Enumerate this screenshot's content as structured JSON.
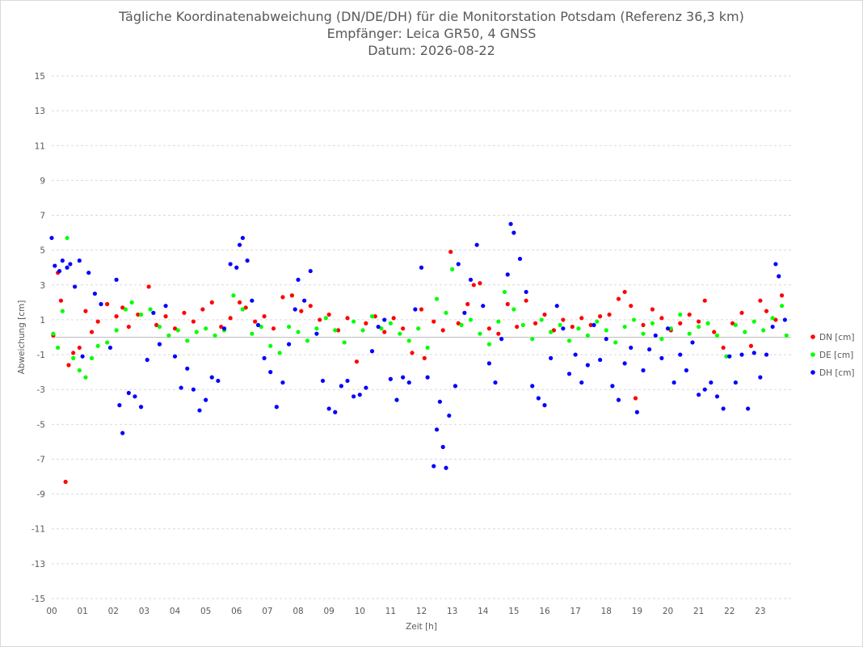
{
  "chart_data": {
    "type": "scatter",
    "title": "Tägliche Koordinatenabweichung (DN/DE/DH) für die Monitorstation Potsdam (Referenz 36,3 km)",
    "subtitle1": "Empfänger: Leica GR50, 4 GNSS",
    "subtitle2": "Datum: 2026-08-22",
    "xlabel": "Zeit [h]",
    "ylabel": "Abweichung [cm]",
    "xlim": [
      0,
      24
    ],
    "ylim": [
      -15,
      15
    ],
    "y_ticks": [
      "15",
      "13",
      "11",
      "9",
      "7",
      "5",
      "3",
      "1",
      "-1",
      "-3",
      "-5",
      "-7",
      "-9",
      "-11",
      "-13",
      "-15"
    ],
    "x_ticks": [
      "00",
      "01",
      "02",
      "03",
      "04",
      "05",
      "06",
      "07",
      "08",
      "09",
      "10",
      "11",
      "12",
      "13",
      "14",
      "15",
      "16",
      "17",
      "18",
      "19",
      "20",
      "21",
      "22",
      "23"
    ],
    "grid": "horizontal dashed",
    "legend_position": "right",
    "colors": {
      "DN": "#ff0000",
      "DE": "#00ff00",
      "DH": "#0000ff"
    },
    "series": [
      {
        "name": "DN [cm]",
        "color": "#ff0000",
        "points": [
          [
            0.05,
            0.1
          ],
          [
            0.2,
            3.7
          ],
          [
            0.3,
            2.1
          ],
          [
            0.45,
            -8.3
          ],
          [
            0.55,
            -1.6
          ],
          [
            0.7,
            -0.9
          ],
          [
            0.9,
            -0.6
          ],
          [
            1.1,
            1.5
          ],
          [
            1.3,
            0.3
          ],
          [
            1.5,
            0.9
          ],
          [
            1.8,
            1.9
          ],
          [
            2.1,
            1.2
          ],
          [
            2.3,
            1.7
          ],
          [
            2.5,
            0.6
          ],
          [
            2.8,
            1.3
          ],
          [
            3.15,
            2.9
          ],
          [
            3.4,
            0.7
          ],
          [
            3.7,
            1.2
          ],
          [
            4.0,
            0.5
          ],
          [
            4.3,
            1.4
          ],
          [
            4.6,
            0.9
          ],
          [
            4.9,
            1.6
          ],
          [
            5.2,
            2.0
          ],
          [
            5.5,
            0.6
          ],
          [
            5.8,
            1.1
          ],
          [
            6.1,
            2.0
          ],
          [
            6.3,
            1.7
          ],
          [
            6.6,
            0.9
          ],
          [
            6.9,
            1.2
          ],
          [
            7.2,
            0.5
          ],
          [
            7.5,
            2.3
          ],
          [
            7.8,
            2.4
          ],
          [
            8.1,
            1.5
          ],
          [
            8.4,
            1.8
          ],
          [
            8.7,
            1.0
          ],
          [
            9.0,
            1.3
          ],
          [
            9.3,
            0.4
          ],
          [
            9.6,
            1.1
          ],
          [
            9.9,
            -1.4
          ],
          [
            10.2,
            0.8
          ],
          [
            10.5,
            1.2
          ],
          [
            10.8,
            0.3
          ],
          [
            11.1,
            1.1
          ],
          [
            11.4,
            0.5
          ],
          [
            11.7,
            -0.9
          ],
          [
            12.0,
            1.6
          ],
          [
            12.1,
            -1.2
          ],
          [
            12.4,
            0.9
          ],
          [
            12.7,
            0.4
          ],
          [
            12.95,
            4.9
          ],
          [
            13.2,
            0.8
          ],
          [
            13.5,
            1.9
          ],
          [
            13.7,
            3.0
          ],
          [
            13.9,
            3.1
          ],
          [
            14.2,
            0.5
          ],
          [
            14.5,
            0.2
          ],
          [
            14.8,
            1.9
          ],
          [
            15.1,
            0.6
          ],
          [
            15.4,
            2.1
          ],
          [
            15.7,
            0.8
          ],
          [
            16.0,
            1.3
          ],
          [
            16.3,
            0.4
          ],
          [
            16.6,
            1.0
          ],
          [
            16.9,
            0.6
          ],
          [
            17.2,
            1.1
          ],
          [
            17.5,
            0.7
          ],
          [
            17.8,
            1.2
          ],
          [
            18.1,
            1.3
          ],
          [
            18.4,
            2.2
          ],
          [
            18.6,
            2.6
          ],
          [
            18.8,
            1.8
          ],
          [
            18.95,
            -3.5
          ],
          [
            19.2,
            0.7
          ],
          [
            19.5,
            1.6
          ],
          [
            19.8,
            1.1
          ],
          [
            20.1,
            0.4
          ],
          [
            20.4,
            0.8
          ],
          [
            20.7,
            1.3
          ],
          [
            21.0,
            0.9
          ],
          [
            21.2,
            2.1
          ],
          [
            21.5,
            0.3
          ],
          [
            21.8,
            -0.6
          ],
          [
            22.1,
            0.8
          ],
          [
            22.4,
            1.4
          ],
          [
            22.7,
            -0.5
          ],
          [
            23.0,
            2.1
          ],
          [
            23.2,
            1.5
          ],
          [
            23.5,
            1.0
          ],
          [
            23.7,
            2.4
          ]
        ]
      },
      {
        "name": "DE [cm]",
        "color": "#00ff00",
        "points": [
          [
            0.05,
            0.2
          ],
          [
            0.2,
            -0.6
          ],
          [
            0.35,
            1.5
          ],
          [
            0.5,
            5.7
          ],
          [
            0.7,
            -1.2
          ],
          [
            0.9,
            -1.9
          ],
          [
            1.1,
            -2.3
          ],
          [
            1.3,
            -1.2
          ],
          [
            1.5,
            -0.5
          ],
          [
            1.8,
            -0.3
          ],
          [
            2.1,
            0.4
          ],
          [
            2.4,
            1.6
          ],
          [
            2.6,
            2.0
          ],
          [
            2.9,
            1.3
          ],
          [
            3.2,
            1.6
          ],
          [
            3.5,
            0.6
          ],
          [
            3.8,
            0.1
          ],
          [
            4.1,
            0.4
          ],
          [
            4.4,
            -0.2
          ],
          [
            4.7,
            0.3
          ],
          [
            5.0,
            0.5
          ],
          [
            5.3,
            0.1
          ],
          [
            5.6,
            0.4
          ],
          [
            5.9,
            2.4
          ],
          [
            6.2,
            1.6
          ],
          [
            6.5,
            0.2
          ],
          [
            6.8,
            0.6
          ],
          [
            7.1,
            -0.5
          ],
          [
            7.4,
            -0.9
          ],
          [
            7.7,
            0.6
          ],
          [
            8.0,
            0.3
          ],
          [
            8.3,
            -0.2
          ],
          [
            8.6,
            0.5
          ],
          [
            8.9,
            1.1
          ],
          [
            9.2,
            0.4
          ],
          [
            9.5,
            -0.3
          ],
          [
            9.8,
            0.9
          ],
          [
            10.1,
            0.4
          ],
          [
            10.4,
            1.2
          ],
          [
            10.7,
            0.5
          ],
          [
            11.0,
            0.8
          ],
          [
            11.3,
            0.2
          ],
          [
            11.6,
            -0.2
          ],
          [
            11.9,
            0.5
          ],
          [
            12.2,
            -0.6
          ],
          [
            12.5,
            2.2
          ],
          [
            12.8,
            1.4
          ],
          [
            13.0,
            3.9
          ],
          [
            13.3,
            0.7
          ],
          [
            13.6,
            1.0
          ],
          [
            13.9,
            0.2
          ],
          [
            14.2,
            -0.4
          ],
          [
            14.5,
            0.9
          ],
          [
            14.7,
            2.6
          ],
          [
            15.0,
            1.6
          ],
          [
            15.3,
            0.7
          ],
          [
            15.6,
            -0.1
          ],
          [
            15.9,
            1.0
          ],
          [
            16.2,
            0.3
          ],
          [
            16.5,
            0.7
          ],
          [
            16.8,
            -0.2
          ],
          [
            17.1,
            0.5
          ],
          [
            17.4,
            0.1
          ],
          [
            17.7,
            0.9
          ],
          [
            18.0,
            0.4
          ],
          [
            18.3,
            -0.3
          ],
          [
            18.6,
            0.6
          ],
          [
            18.9,
            1.0
          ],
          [
            19.2,
            0.2
          ],
          [
            19.5,
            0.8
          ],
          [
            19.8,
            -0.1
          ],
          [
            20.1,
            0.5
          ],
          [
            20.4,
            1.3
          ],
          [
            20.7,
            0.2
          ],
          [
            21.0,
            0.6
          ],
          [
            21.3,
            0.8
          ],
          [
            21.6,
            0.1
          ],
          [
            21.9,
            -1.1
          ],
          [
            22.2,
            0.7
          ],
          [
            22.5,
            0.3
          ],
          [
            22.8,
            0.9
          ],
          [
            23.1,
            0.4
          ],
          [
            23.4,
            1.1
          ],
          [
            23.7,
            1.8
          ],
          [
            23.85,
            0.1
          ]
        ]
      },
      {
        "name": "DH [cm]",
        "color": "#0000ff",
        "points": [
          [
            0.0,
            5.7
          ],
          [
            0.1,
            4.1
          ],
          [
            0.25,
            3.8
          ],
          [
            0.35,
            4.4
          ],
          [
            0.5,
            4.0
          ],
          [
            0.6,
            4.2
          ],
          [
            0.75,
            2.9
          ],
          [
            0.9,
            4.4
          ],
          [
            1.0,
            -1.1
          ],
          [
            1.2,
            3.7
          ],
          [
            1.4,
            2.5
          ],
          [
            1.6,
            1.9
          ],
          [
            1.9,
            -0.6
          ],
          [
            2.1,
            3.3
          ],
          [
            2.2,
            -3.9
          ],
          [
            2.3,
            -5.5
          ],
          [
            2.5,
            -3.2
          ],
          [
            2.7,
            -3.4
          ],
          [
            2.9,
            -4.0
          ],
          [
            3.1,
            -1.3
          ],
          [
            3.3,
            1.4
          ],
          [
            3.5,
            -0.4
          ],
          [
            3.7,
            1.8
          ],
          [
            4.0,
            -1.1
          ],
          [
            4.2,
            -2.9
          ],
          [
            4.4,
            -1.8
          ],
          [
            4.6,
            -3.0
          ],
          [
            4.8,
            -4.2
          ],
          [
            5.0,
            -3.6
          ],
          [
            5.2,
            -2.3
          ],
          [
            5.4,
            -2.5
          ],
          [
            5.6,
            0.5
          ],
          [
            5.8,
            4.2
          ],
          [
            6.0,
            4.0
          ],
          [
            6.1,
            5.3
          ],
          [
            6.2,
            5.7
          ],
          [
            6.35,
            4.4
          ],
          [
            6.5,
            2.1
          ],
          [
            6.7,
            0.7
          ],
          [
            6.9,
            -1.2
          ],
          [
            7.1,
            -2.0
          ],
          [
            7.3,
            -4.0
          ],
          [
            7.5,
            -2.6
          ],
          [
            7.7,
            -0.4
          ],
          [
            7.9,
            1.6
          ],
          [
            8.0,
            3.3
          ],
          [
            8.2,
            2.1
          ],
          [
            8.4,
            3.8
          ],
          [
            8.6,
            0.2
          ],
          [
            8.8,
            -2.5
          ],
          [
            9.0,
            -4.1
          ],
          [
            9.2,
            -4.3
          ],
          [
            9.4,
            -2.8
          ],
          [
            9.6,
            -2.5
          ],
          [
            9.8,
            -3.4
          ],
          [
            10.0,
            -3.3
          ],
          [
            10.2,
            -2.9
          ],
          [
            10.4,
            -0.8
          ],
          [
            10.6,
            0.6
          ],
          [
            10.8,
            1.0
          ],
          [
            11.0,
            -2.4
          ],
          [
            11.2,
            -3.6
          ],
          [
            11.4,
            -2.3
          ],
          [
            11.6,
            -2.6
          ],
          [
            11.8,
            1.6
          ],
          [
            12.0,
            4.0
          ],
          [
            12.2,
            -2.3
          ],
          [
            12.4,
            -7.4
          ],
          [
            12.5,
            -5.3
          ],
          [
            12.6,
            -3.7
          ],
          [
            12.7,
            -6.3
          ],
          [
            12.8,
            -7.5
          ],
          [
            12.9,
            -4.5
          ],
          [
            13.1,
            -2.8
          ],
          [
            13.2,
            4.2
          ],
          [
            13.4,
            1.4
          ],
          [
            13.6,
            3.3
          ],
          [
            13.8,
            5.3
          ],
          [
            14.0,
            1.8
          ],
          [
            14.2,
            -1.5
          ],
          [
            14.4,
            -2.6
          ],
          [
            14.6,
            -0.1
          ],
          [
            14.8,
            3.6
          ],
          [
            14.9,
            6.5
          ],
          [
            15.0,
            6.0
          ],
          [
            15.2,
            4.5
          ],
          [
            15.4,
            2.6
          ],
          [
            15.6,
            -2.8
          ],
          [
            15.8,
            -3.5
          ],
          [
            16.0,
            -3.9
          ],
          [
            16.2,
            -1.2
          ],
          [
            16.4,
            1.8
          ],
          [
            16.6,
            0.5
          ],
          [
            16.8,
            -2.1
          ],
          [
            17.0,
            -1.0
          ],
          [
            17.2,
            -2.6
          ],
          [
            17.4,
            -1.6
          ],
          [
            17.6,
            0.7
          ],
          [
            17.8,
            -1.3
          ],
          [
            18.0,
            -0.1
          ],
          [
            18.2,
            -2.8
          ],
          [
            18.4,
            -3.6
          ],
          [
            18.6,
            -1.5
          ],
          [
            18.8,
            -0.6
          ],
          [
            19.0,
            -4.3
          ],
          [
            19.2,
            -1.9
          ],
          [
            19.4,
            -0.7
          ],
          [
            19.6,
            0.1
          ],
          [
            19.8,
            -1.2
          ],
          [
            20.0,
            0.5
          ],
          [
            20.2,
            -2.6
          ],
          [
            20.4,
            -1.0
          ],
          [
            20.6,
            -1.9
          ],
          [
            20.8,
            -0.3
          ],
          [
            21.0,
            -3.3
          ],
          [
            21.2,
            -3.0
          ],
          [
            21.4,
            -2.6
          ],
          [
            21.6,
            -3.4
          ],
          [
            21.8,
            -4.1
          ],
          [
            22.0,
            -1.1
          ],
          [
            22.2,
            -2.6
          ],
          [
            22.4,
            -1.0
          ],
          [
            22.6,
            -4.1
          ],
          [
            22.8,
            -0.9
          ],
          [
            23.0,
            -2.3
          ],
          [
            23.2,
            -1.0
          ],
          [
            23.4,
            0.6
          ],
          [
            23.5,
            4.2
          ],
          [
            23.6,
            3.5
          ],
          [
            23.8,
            1.0
          ]
        ]
      }
    ]
  }
}
